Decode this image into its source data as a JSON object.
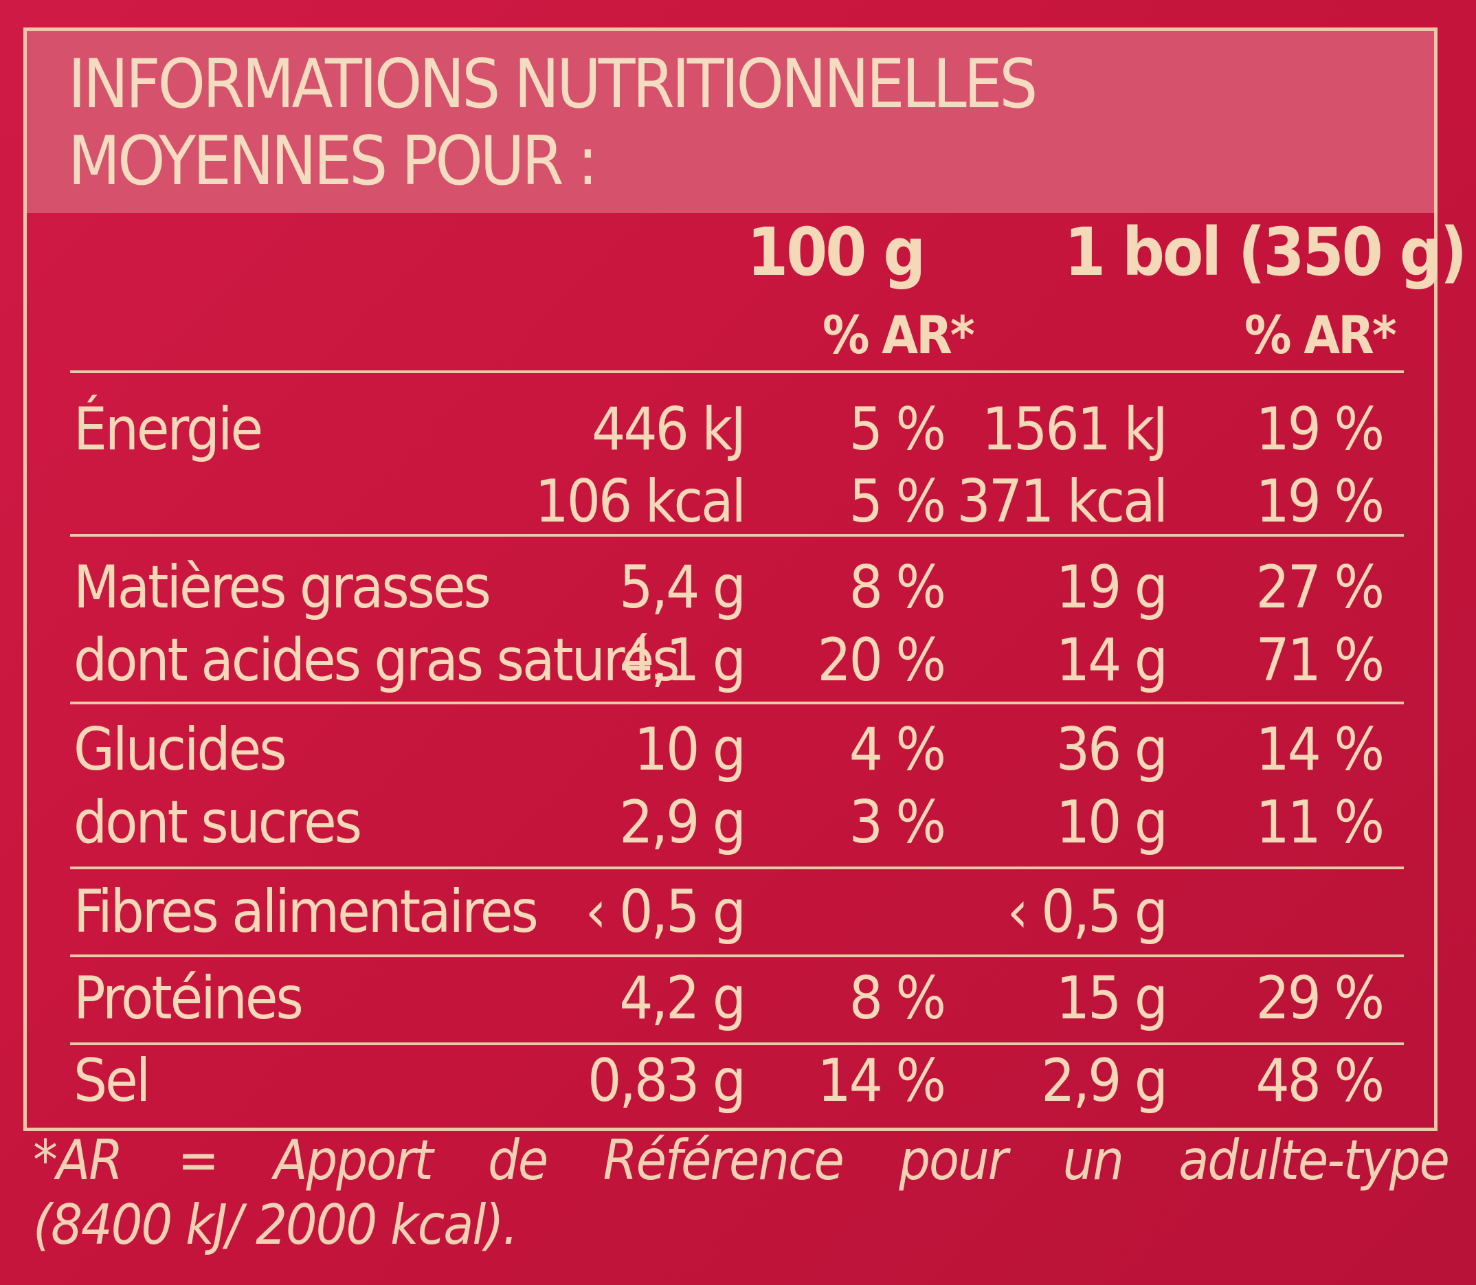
{
  "title": {
    "line1": "INFORMATIONS NUTRITIONNELLES",
    "line2": "MOYENNES POUR :"
  },
  "header": {
    "col_100g": "100 g",
    "col_bol": "1 bol (350 g)",
    "ar_100g": "% AR*",
    "ar_bol": "% AR*"
  },
  "rows": [
    {
      "label": "Énergie",
      "v100": "446 kJ",
      "ar100": "5 %",
      "vbol": "1561 kJ",
      "arbol": "19 %"
    },
    {
      "label": "",
      "v100": "106 kcal",
      "ar100": "5 %",
      "vbol": "371 kcal",
      "arbol": "19 %"
    },
    {
      "label": "Matières grasses",
      "v100": "5,4 g",
      "ar100": "8 %",
      "vbol": "19 g",
      "arbol": "27 %"
    },
    {
      "label": "dont acides gras saturés",
      "v100": "4,1 g",
      "ar100": "20 %",
      "vbol": "14 g",
      "arbol": "71 %"
    },
    {
      "label": "Glucides",
      "v100": "10 g",
      "ar100": "4 %",
      "vbol": "36 g",
      "arbol": "14 %"
    },
    {
      "label": "dont sucres",
      "v100": "2,9 g",
      "ar100": "3 %",
      "vbol": "10 g",
      "arbol": "11 %"
    },
    {
      "label": "Fibres alimentaires",
      "v100": "‹ 0,5 g",
      "ar100": "",
      "vbol": "‹ 0,5 g",
      "arbol": ""
    },
    {
      "label": "Protéines",
      "v100": "4,2 g",
      "ar100": "8 %",
      "vbol": "15 g",
      "arbol": "29 %"
    },
    {
      "label": "Sel",
      "v100": "0,83 g",
      "ar100": "14 %",
      "vbol": "2,9 g",
      "arbol": "48 %"
    }
  ],
  "footnote": {
    "parts": [
      "*AR",
      "=",
      "Apport",
      "de",
      "Référence",
      "pour",
      "un",
      "adulte-type"
    ],
    "line2": "(8400 kJ/ 2000 kcal)."
  },
  "colors": {
    "background": "#c8163e",
    "title_band": "#d6526c",
    "text": "#f3d9b8",
    "rule": "#ecc9a6"
  }
}
